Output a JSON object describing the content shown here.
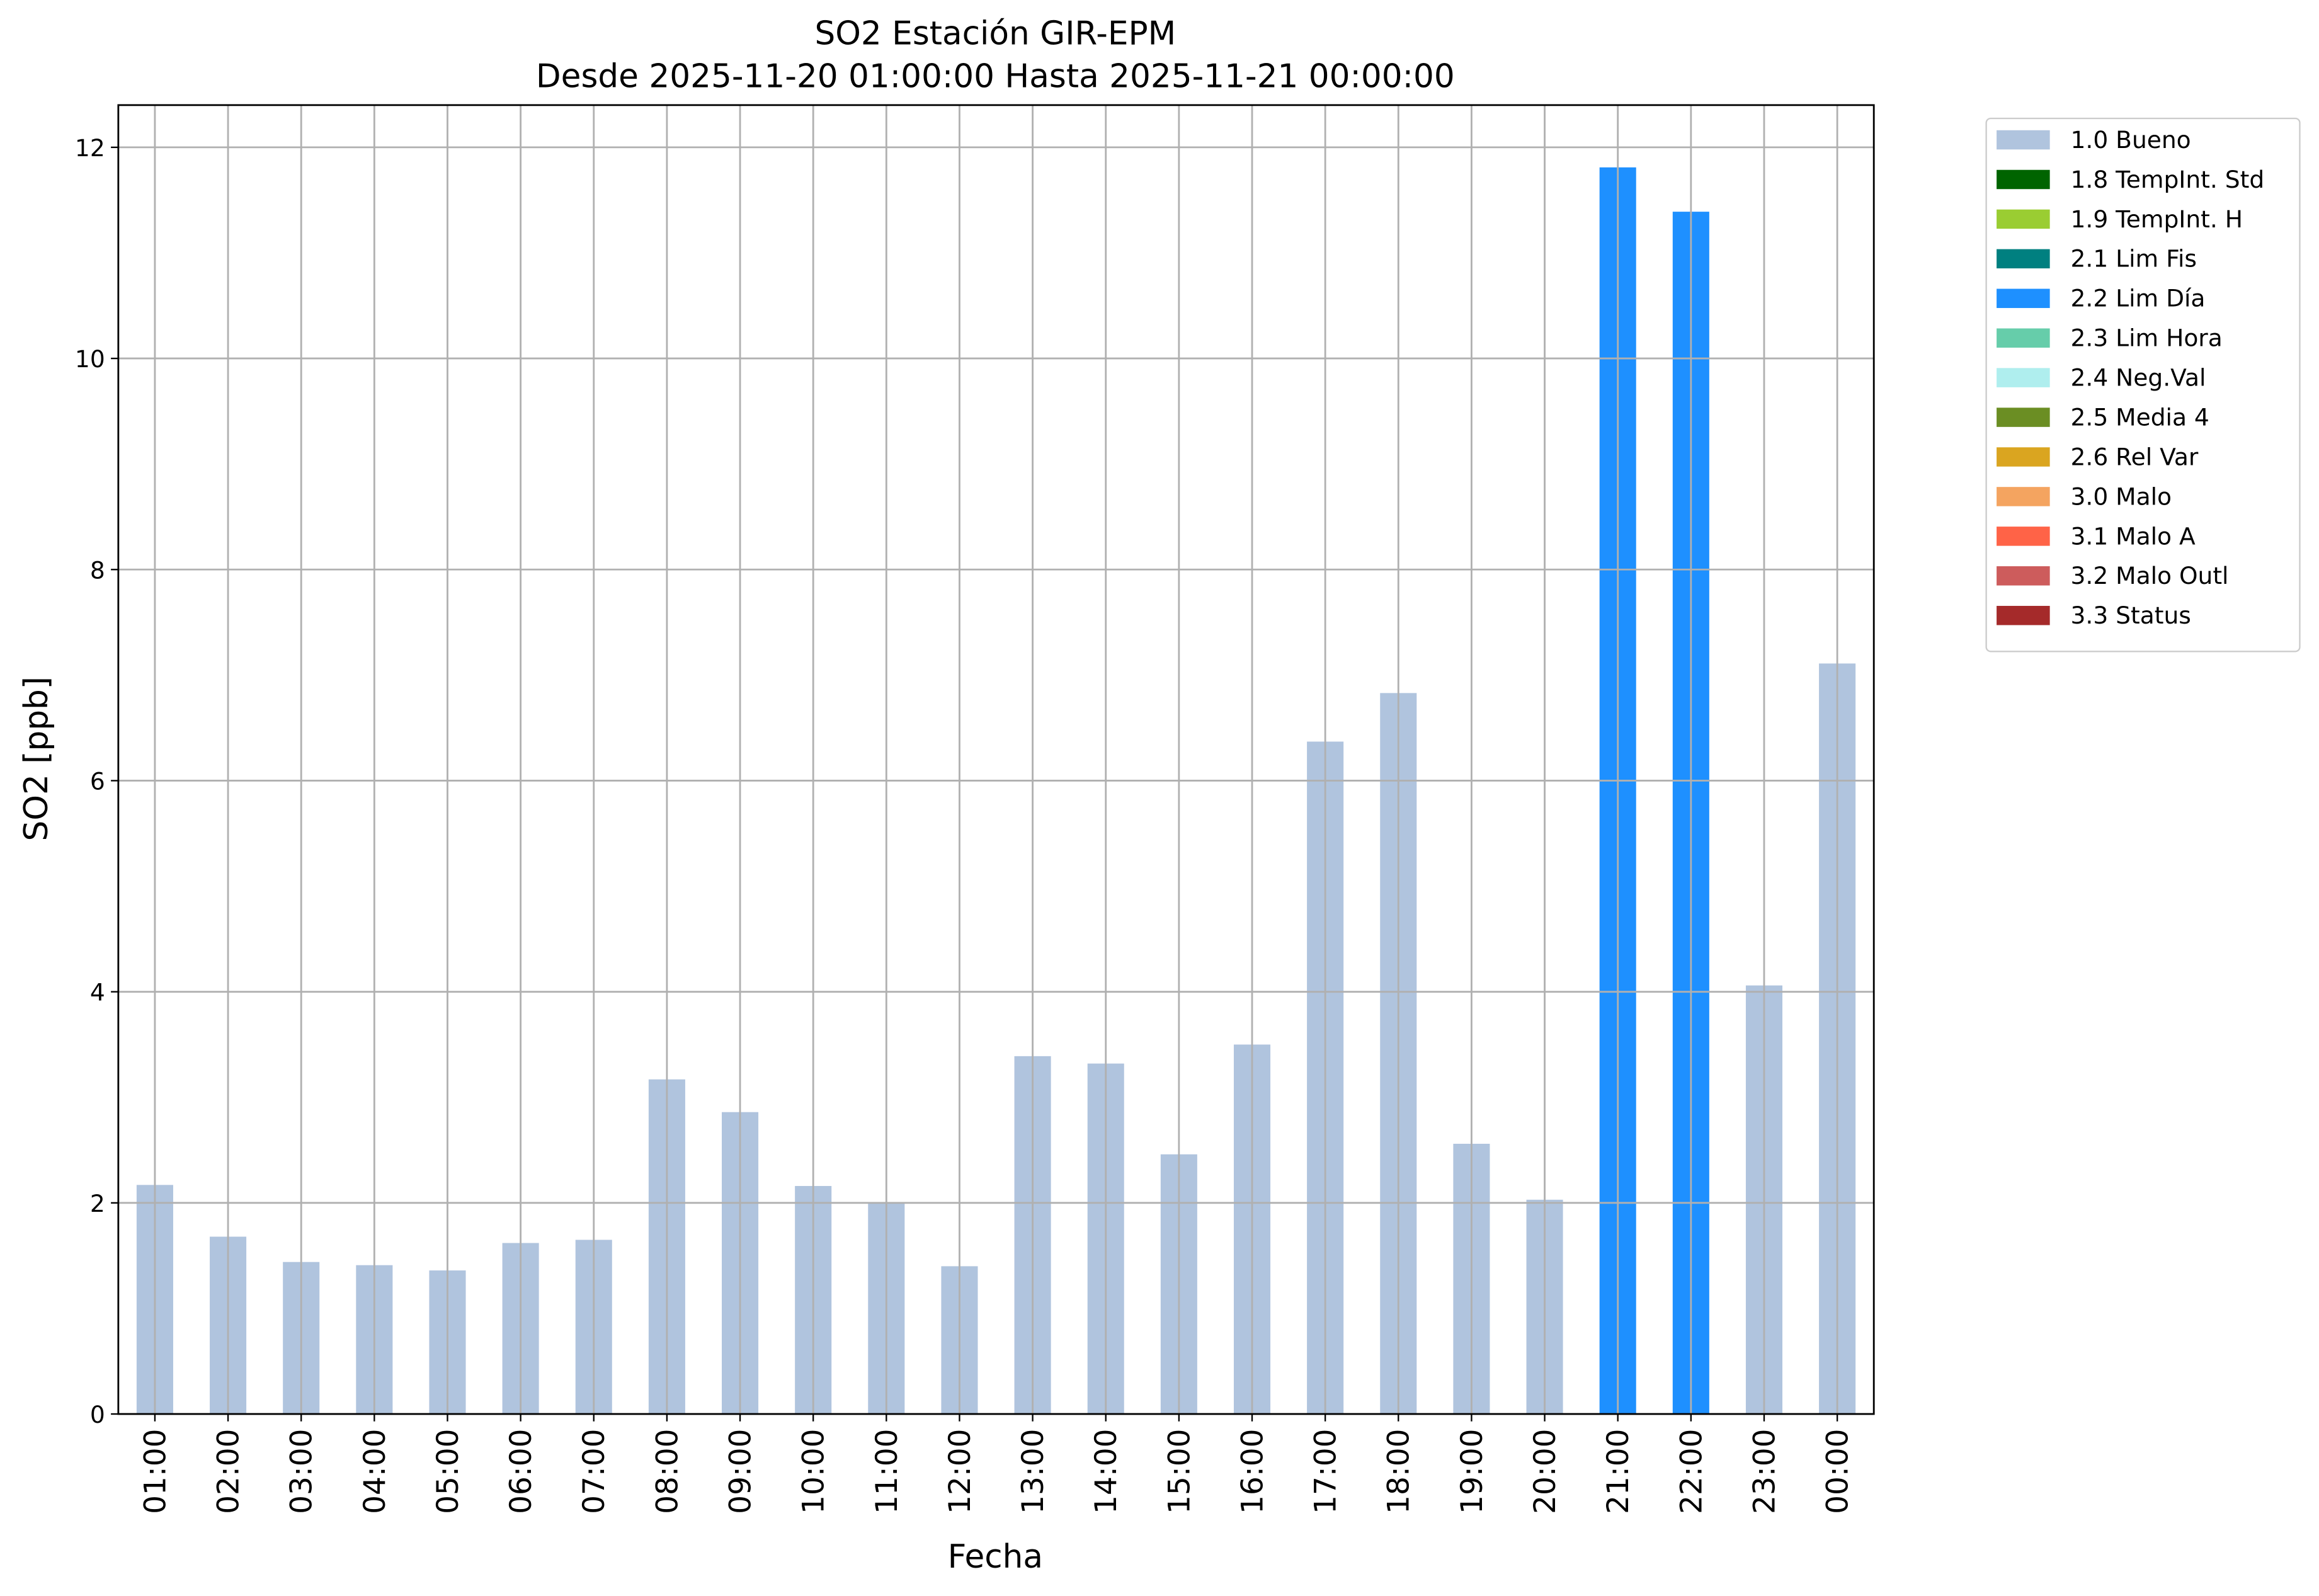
{
  "chart_data": {
    "type": "bar",
    "stacked": true,
    "title": "SO2 Estación GIR-EPM",
    "subtitle": "Desde 2025-11-20 01:00:00 Hasta 2025-11-21 00:00:00",
    "x_label": "Fecha",
    "y_label": "SO2 [ppb]",
    "categories": [
      "01:00",
      "02:00",
      "03:00",
      "04:00",
      "05:00",
      "06:00",
      "07:00",
      "08:00",
      "09:00",
      "10:00",
      "11:00",
      "12:00",
      "13:00",
      "14:00",
      "15:00",
      "16:00",
      "17:00",
      "18:00",
      "19:00",
      "20:00",
      "21:00",
      "22:00",
      "23:00",
      "00:00"
    ],
    "series": [
      {
        "name": "1.0 Bueno",
        "color": "#b0c4de",
        "values": [
          2.17,
          1.68,
          1.44,
          1.41,
          1.36,
          1.62,
          1.65,
          3.17,
          2.86,
          2.16,
          2.0,
          1.4,
          3.39,
          3.32,
          2.46,
          3.5,
          6.37,
          6.83,
          2.56,
          2.03,
          null,
          null,
          4.06,
          7.11
        ]
      },
      {
        "name": "1.8 TempInt. Std",
        "color": "#006400",
        "values": [
          null,
          null,
          null,
          null,
          null,
          null,
          null,
          null,
          null,
          null,
          null,
          null,
          null,
          null,
          null,
          null,
          null,
          null,
          null,
          null,
          null,
          null,
          null,
          null
        ]
      },
      {
        "name": "1.9 TempInt. H",
        "color": "#9acd32",
        "values": [
          null,
          null,
          null,
          null,
          null,
          null,
          null,
          null,
          null,
          null,
          null,
          null,
          null,
          null,
          null,
          null,
          null,
          null,
          null,
          null,
          null,
          null,
          null,
          null
        ]
      },
      {
        "name": "2.1 Lim Fis",
        "color": "#008080",
        "values": [
          null,
          null,
          null,
          null,
          null,
          null,
          null,
          null,
          null,
          null,
          null,
          null,
          null,
          null,
          null,
          null,
          null,
          null,
          null,
          null,
          null,
          null,
          null,
          null
        ]
      },
      {
        "name": "2.2 Lim Día",
        "color": "#1e90ff",
        "values": [
          null,
          null,
          null,
          null,
          null,
          null,
          null,
          null,
          null,
          null,
          null,
          null,
          null,
          null,
          null,
          null,
          null,
          null,
          null,
          null,
          11.81,
          11.39,
          null,
          null
        ]
      },
      {
        "name": "2.3 Lim Hora",
        "color": "#66cdaa",
        "values": [
          null,
          null,
          null,
          null,
          null,
          null,
          null,
          null,
          null,
          null,
          null,
          null,
          null,
          null,
          null,
          null,
          null,
          null,
          null,
          null,
          null,
          null,
          null,
          null
        ]
      },
      {
        "name": "2.4 Neg.Val",
        "color": "#afeeee",
        "values": [
          null,
          null,
          null,
          null,
          null,
          null,
          null,
          null,
          null,
          null,
          null,
          null,
          null,
          null,
          null,
          null,
          null,
          null,
          null,
          null,
          null,
          null,
          null,
          null
        ]
      },
      {
        "name": "2.5 Media 4",
        "color": "#6b8e23",
        "values": [
          null,
          null,
          null,
          null,
          null,
          null,
          null,
          null,
          null,
          null,
          null,
          null,
          null,
          null,
          null,
          null,
          null,
          null,
          null,
          null,
          null,
          null,
          null,
          null
        ]
      },
      {
        "name": "2.6 Rel Var",
        "color": "#daa520",
        "values": [
          null,
          null,
          null,
          null,
          null,
          null,
          null,
          null,
          null,
          null,
          null,
          null,
          null,
          null,
          null,
          null,
          null,
          null,
          null,
          null,
          null,
          null,
          null,
          null
        ]
      },
      {
        "name": "3.0 Malo",
        "color": "#f4a460",
        "values": [
          null,
          null,
          null,
          null,
          null,
          null,
          null,
          null,
          null,
          null,
          null,
          null,
          null,
          null,
          null,
          null,
          null,
          null,
          null,
          null,
          null,
          null,
          null,
          null
        ]
      },
      {
        "name": "3.1 Malo A",
        "color": "#ff6347",
        "values": [
          null,
          null,
          null,
          null,
          null,
          null,
          null,
          null,
          null,
          null,
          null,
          null,
          null,
          null,
          null,
          null,
          null,
          null,
          null,
          null,
          null,
          null,
          null,
          null
        ]
      },
      {
        "name": "3.2 Malo Outl",
        "color": "#cd5c5c",
        "values": [
          null,
          null,
          null,
          null,
          null,
          null,
          null,
          null,
          null,
          null,
          null,
          null,
          null,
          null,
          null,
          null,
          null,
          null,
          null,
          null,
          null,
          null,
          null,
          null
        ]
      },
      {
        "name": "3.3 Status",
        "color": "#a52a2a",
        "values": [
          null,
          null,
          null,
          null,
          null,
          null,
          null,
          null,
          null,
          null,
          null,
          null,
          null,
          null,
          null,
          null,
          null,
          null,
          null,
          null,
          null,
          null,
          null,
          null
        ]
      }
    ],
    "ylim": [
      0,
      12.4
    ],
    "yticks": [
      0,
      2,
      4,
      6,
      8,
      10,
      12
    ],
    "grid": true,
    "legend": "outside-right"
  }
}
